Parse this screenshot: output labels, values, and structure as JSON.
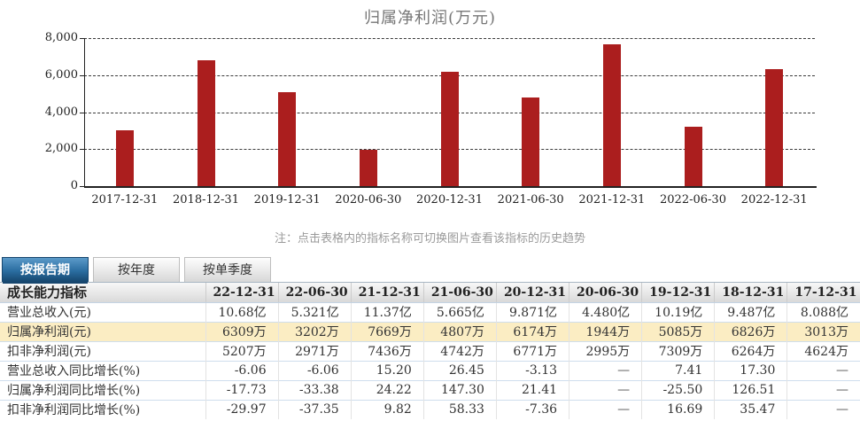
{
  "chart_data": {
    "type": "bar",
    "title": "归属净利润(万元)",
    "categories": [
      "2017-12-31",
      "2018-12-31",
      "2019-12-31",
      "2020-06-30",
      "2020-12-31",
      "2021-06-30",
      "2021-12-31",
      "2022-06-30",
      "2022-12-31"
    ],
    "values": [
      3013,
      6826,
      5085,
      1944,
      6174,
      4807,
      7669,
      3202,
      6309
    ],
    "ylim": [
      0,
      8000
    ],
    "yticks": [
      0,
      2000,
      4000,
      6000,
      8000
    ],
    "ytick_labels": [
      "0",
      "2,000",
      "4,000",
      "6,000",
      "8,000"
    ],
    "grid": "horizontal-dashed",
    "legend": "none",
    "bar_color": "#AB1E1E"
  },
  "note": "注：点击表格内的指标名称可切换图片查看该指标的历史趋势",
  "tabs": [
    {
      "key": "report-period",
      "label": "按报告期",
      "active": true
    },
    {
      "key": "yearly",
      "label": "按年度",
      "active": false
    },
    {
      "key": "single-quarter",
      "label": "按单季度",
      "active": false
    }
  ],
  "table": {
    "corner_label": "成长能力指标",
    "columns": [
      "22-12-31",
      "22-06-30",
      "21-12-31",
      "21-06-30",
      "20-12-31",
      "20-06-30",
      "19-12-31",
      "18-12-31",
      "17-12-31"
    ],
    "rows": [
      {
        "label": "营业总收入(元)",
        "highlighted": false,
        "values": [
          "10.68亿",
          "5.321亿",
          "11.37亿",
          "5.665亿",
          "9.871亿",
          "4.480亿",
          "10.19亿",
          "9.487亿",
          "8.088亿"
        ]
      },
      {
        "label": "归属净利润(元)",
        "highlighted": true,
        "values": [
          "6309万",
          "3202万",
          "7669万",
          "4807万",
          "6174万",
          "1944万",
          "5085万",
          "6826万",
          "3013万"
        ]
      },
      {
        "label": "扣非净利润(元)",
        "highlighted": false,
        "values": [
          "5207万",
          "2971万",
          "7436万",
          "4742万",
          "6771万",
          "2995万",
          "7309万",
          "6264万",
          "4624万"
        ]
      },
      {
        "label": "营业总收入同比增长(%)",
        "highlighted": false,
        "values": [
          "-6.06",
          "-6.06",
          "15.20",
          "26.45",
          "-3.13",
          "—",
          "7.41",
          "17.30",
          "—"
        ]
      },
      {
        "label": "归属净利润同比增长(%)",
        "highlighted": false,
        "values": [
          "-17.73",
          "-33.38",
          "24.22",
          "147.30",
          "21.41",
          "—",
          "-25.50",
          "126.51",
          "—"
        ]
      },
      {
        "label": "扣非净利润同比增长(%)",
        "highlighted": false,
        "values": [
          "-29.97",
          "-37.35",
          "9.82",
          "58.33",
          "-7.36",
          "—",
          "16.69",
          "35.47",
          "—"
        ]
      }
    ]
  },
  "colors": {
    "bar": "#AB1E1E",
    "highlight_row_bg": "#FBEDC3",
    "active_tab_gradient_top": "#5B9AC9",
    "active_tab_gradient_bottom": "#16466E",
    "row_border": "#CFDEED",
    "note_text": "#9A9A9A",
    "title_text": "#777777"
  }
}
